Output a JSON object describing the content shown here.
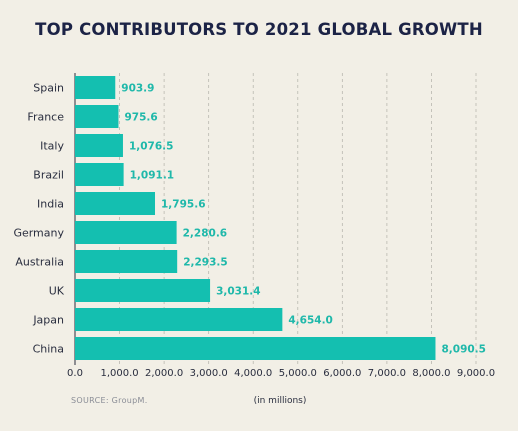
{
  "chart_data": {
    "type": "bar",
    "orientation": "horizontal",
    "title": "TOP CONTRIBUTORS TO 2021 GLOBAL GROWTH",
    "categories": [
      "Spain",
      "France",
      "Italy",
      "Brazil",
      "India",
      "Germany",
      "Australia",
      "UK",
      "Japan",
      "China"
    ],
    "values": [
      903.9,
      975.6,
      1076.5,
      1091.1,
      1795.6,
      2280.6,
      2293.5,
      3031.4,
      4654.0,
      8090.5
    ],
    "value_labels": [
      "903.9",
      "975.6",
      "1,076.5",
      "1,091.1",
      "1,795.6",
      "2,280.6",
      "2,293.5",
      "3,031.4",
      "4,654.0",
      "8,090.5"
    ],
    "xlim": [
      0,
      9000
    ],
    "xticks": [
      0,
      1000,
      2000,
      3000,
      4000,
      5000,
      6000,
      7000,
      8000,
      9000
    ],
    "xtick_labels": [
      "0.0",
      "1,000.0",
      "2,000.0",
      "3,000.0",
      "4,000.0",
      "5,000.0",
      "6,000.0",
      "7,000.0",
      "8,000.0",
      "9,000.0"
    ],
    "xlabel": "(in millions)",
    "source": "SOURCE: GroupM.",
    "grid": "vertical dashed",
    "bar_color": "#14bfb0",
    "value_label_color": "#1fb8aa"
  }
}
